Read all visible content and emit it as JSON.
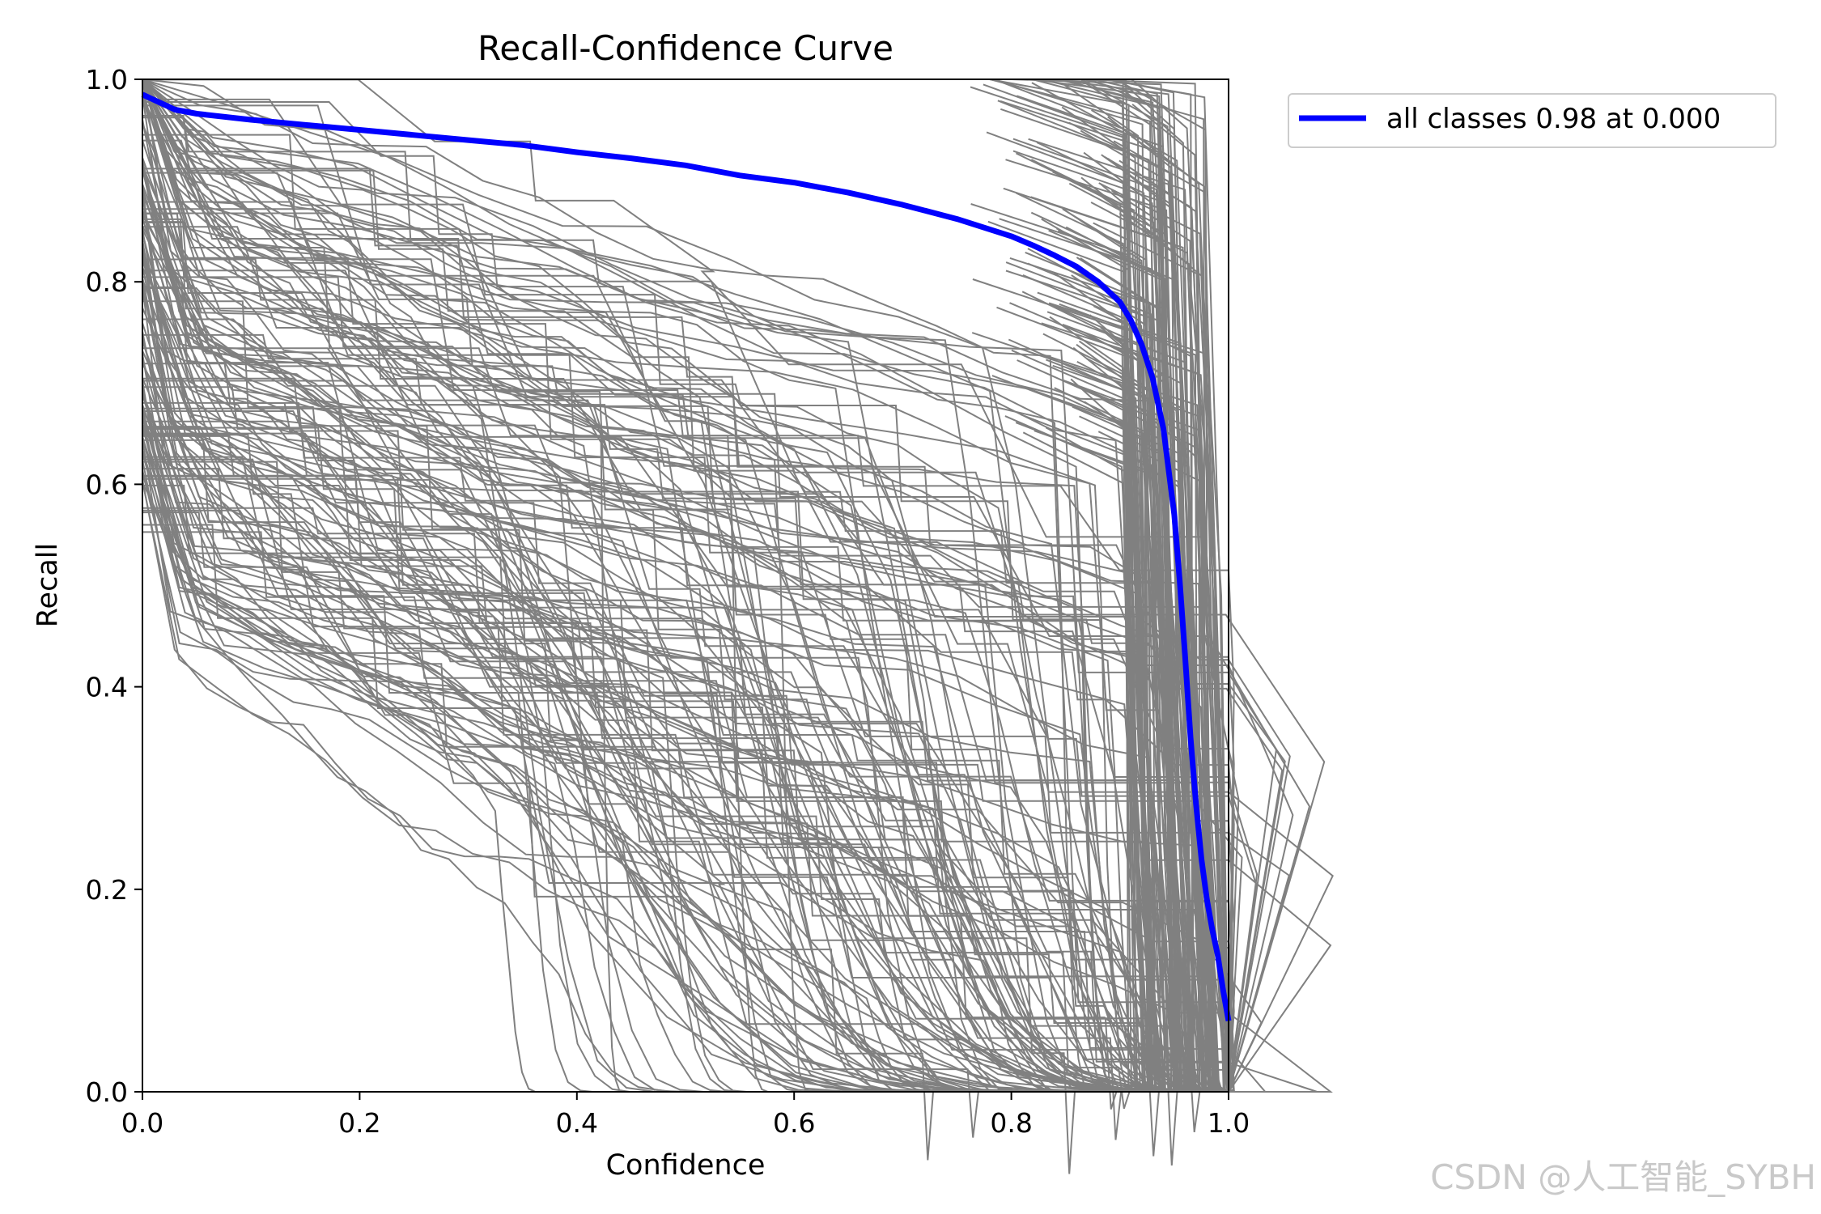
{
  "chart_data": {
    "type": "line",
    "title": "Recall-Confidence Curve",
    "xlabel": "Confidence",
    "ylabel": "Recall",
    "xlim": [
      0,
      1
    ],
    "ylim": [
      0,
      1
    ],
    "xticks": [
      "0.0",
      "0.2",
      "0.4",
      "0.6",
      "0.8",
      "1.0"
    ],
    "yticks": [
      "0.0",
      "0.2",
      "0.4",
      "0.6",
      "0.8",
      "1.0"
    ],
    "grid": false,
    "legend_position": "outside-upper-right",
    "class_curve_color": "#808080",
    "series": [
      {
        "name": "all classes 0.98 at 0.000",
        "color": "#0000ff",
        "x": [
          0,
          0.01,
          0.03,
          0.05,
          0.1,
          0.15,
          0.2,
          0.25,
          0.3,
          0.35,
          0.4,
          0.45,
          0.5,
          0.55,
          0.6,
          0.65,
          0.7,
          0.75,
          0.8,
          0.82,
          0.84,
          0.86,
          0.88,
          0.9,
          0.91,
          0.92,
          0.93,
          0.94,
          0.95,
          0.955,
          0.96,
          0.965,
          0.97,
          0.975,
          0.98,
          0.985,
          0.99,
          0.995,
          1.0
        ],
        "y": [
          0.985,
          0.98,
          0.97,
          0.966,
          0.96,
          0.955,
          0.95,
          0.945,
          0.94,
          0.935,
          0.928,
          0.922,
          0.915,
          0.905,
          0.898,
          0.888,
          0.876,
          0.862,
          0.845,
          0.836,
          0.826,
          0.815,
          0.8,
          0.78,
          0.762,
          0.738,
          0.705,
          0.655,
          0.57,
          0.505,
          0.43,
          0.35,
          0.285,
          0.23,
          0.19,
          0.16,
          0.135,
          0.1,
          0.07
        ]
      }
    ]
  },
  "watermark": "CSDN @人工智能_SYBH"
}
